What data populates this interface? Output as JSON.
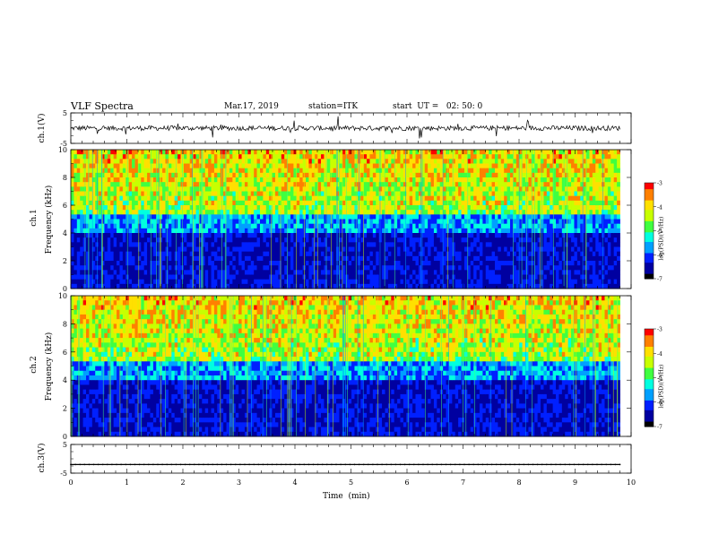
{
  "header": {
    "title": "VLF Spectra",
    "date": "Mar.17, 2019",
    "station": "station=ITK",
    "start": "start  UT =   02: 50: 0"
  },
  "chart_data": [
    {
      "type": "line",
      "panel": "ch1-waveform",
      "ylabel": "ch.1(V)",
      "ylim": [
        -5,
        5
      ],
      "yticks": [
        "5",
        "-5"
      ],
      "baseline": 0.0
    },
    {
      "type": "heatmap",
      "panel": "ch1-spectrogram",
      "ylabel_top": "ch.1",
      "ylabel": "Frequency (kHz)",
      "ylim": [
        0,
        10
      ],
      "yticks": [
        "0",
        "2",
        "4",
        "6",
        "8",
        "10"
      ],
      "colorbar": {
        "label": "log(PSD)(V²/Hz)",
        "range": [
          -7,
          -3
        ],
        "ticks": [
          "-3",
          "-4",
          "-5",
          "-6",
          "-7"
        ]
      }
    },
    {
      "type": "heatmap",
      "panel": "ch2-spectrogram",
      "ylabel_top": "ch.2",
      "ylabel": "Frequency (kHz)",
      "ylim": [
        0,
        10
      ],
      "yticks": [
        "0",
        "2",
        "4",
        "6",
        "8",
        "10"
      ],
      "colorbar": {
        "label": "log(PSD)(V²/Hz)",
        "range": [
          -7,
          -3
        ],
        "ticks": [
          "-3",
          "-4",
          "-5",
          "-6",
          "-7"
        ]
      }
    },
    {
      "type": "line",
      "panel": "ch3-waveform",
      "ylabel": "ch.3(V)",
      "ylim": [
        -5,
        5
      ],
      "yticks": [
        "5",
        "-5"
      ],
      "baseline": -2.0
    }
  ],
  "xaxis": {
    "label": "Time  (min)",
    "xlim": [
      0,
      10
    ],
    "ticks": [
      "0",
      "1",
      "2",
      "3",
      "4",
      "5",
      "6",
      "7",
      "8",
      "9",
      "10"
    ],
    "data_end": 9.8
  },
  "colormap": [
    "#000000",
    "#0000a0",
    "#0020ff",
    "#00a0ff",
    "#00ffe0",
    "#40ff40",
    "#c8ff00",
    "#ffe000",
    "#ff8000",
    "#ff0000"
  ]
}
